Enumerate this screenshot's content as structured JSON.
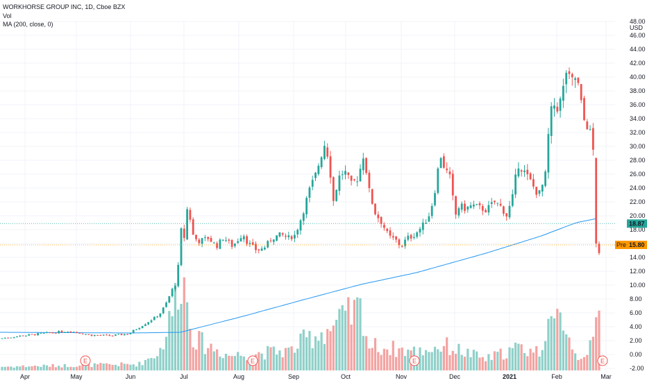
{
  "legend": {
    "symbol_line": "WORKHORSE GROUP INC, 1D, Cboe BZX",
    "vol_label": "Vol",
    "ma_label": "MA (200, close, 0)"
  },
  "colors": {
    "up": "#26a69a",
    "down": "#ef5350",
    "vol_up": "#8fd0c9",
    "vol_down": "#f3a3a1",
    "ma": "#2196f3",
    "last_price": "#26a69a",
    "pre_market": "#ff9800",
    "earnings": "#ef5350"
  },
  "chart_data": {
    "type": "candlestick",
    "currency_label": "USD",
    "y_ticks": [
      "-2.00",
      "0.00",
      "2.00",
      "4.00",
      "6.00",
      "8.00",
      "10.00",
      "12.00",
      "14.00",
      "16.00",
      "18.00",
      "20.00",
      "22.00",
      "24.00",
      "26.00",
      "28.00",
      "30.00",
      "32.00",
      "34.00",
      "36.00",
      "38.00",
      "40.00",
      "42.00",
      "44.00",
      "46.00",
      "48.00"
    ],
    "ylim": [
      -3,
      48
    ],
    "x_labels": [
      "Apr",
      "May",
      "Jun",
      "Jul",
      "Aug",
      "Sep",
      "Oct",
      "Nov",
      "Dec",
      "2021",
      "Feb",
      "Mar"
    ],
    "last_price": {
      "label": "18.87",
      "value": 18.87
    },
    "pre_market": {
      "tag": "Pre",
      "label": "15.80",
      "value": 15.8
    },
    "earnings_marker": "E",
    "earnings_events": [
      "May",
      "Aug",
      "Nov",
      "Mar"
    ],
    "price_anchors": [
      [
        0,
        2.3
      ],
      [
        30,
        2.7
      ],
      [
        60,
        3.0
      ],
      [
        80,
        3.2
      ],
      [
        100,
        3.4
      ],
      [
        110,
        3.2
      ],
      [
        130,
        2.8
      ],
      [
        160,
        2.7
      ],
      [
        185,
        3.0
      ],
      [
        200,
        3.9
      ],
      [
        215,
        4.8
      ],
      [
        230,
        5.8
      ],
      [
        240,
        7.5
      ],
      [
        250,
        9.8
      ],
      [
        255,
        10.3
      ],
      [
        258,
        14.5
      ],
      [
        262,
        19
      ],
      [
        265,
        16.5
      ],
      [
        268,
        20.5
      ],
      [
        272,
        21.5
      ],
      [
        276,
        17.5
      ],
      [
        285,
        16.3
      ],
      [
        300,
        16.8
      ],
      [
        312,
        15.6
      ],
      [
        322,
        16.9
      ],
      [
        335,
        15.6
      ],
      [
        345,
        16.8
      ],
      [
        350,
        17.5
      ],
      [
        356,
        16.2
      ],
      [
        370,
        15.0
      ],
      [
        380,
        15.3
      ],
      [
        392,
        16.8
      ],
      [
        405,
        17.3
      ],
      [
        415,
        16.8
      ],
      [
        425,
        17.2
      ],
      [
        435,
        20.0
      ],
      [
        445,
        23.5
      ],
      [
        455,
        26.0
      ],
      [
        462,
        28.5
      ],
      [
        468,
        30.5
      ],
      [
        474,
        28.0
      ],
      [
        480,
        22.0
      ],
      [
        488,
        25.5
      ],
      [
        496,
        26.5
      ],
      [
        506,
        24.5
      ],
      [
        516,
        25.5
      ],
      [
        524,
        29.0
      ],
      [
        532,
        23.5
      ],
      [
        540,
        20.5
      ],
      [
        550,
        19.0
      ],
      [
        560,
        17.0
      ],
      [
        570,
        16.5
      ],
      [
        578,
        15.5
      ],
      [
        586,
        16.8
      ],
      [
        594,
        17.0
      ],
      [
        604,
        18.0
      ],
      [
        612,
        19.0
      ],
      [
        620,
        20.5
      ],
      [
        628,
        24.5
      ],
      [
        634,
        29.0
      ],
      [
        640,
        27.0
      ],
      [
        648,
        25.5
      ],
      [
        656,
        20.0
      ],
      [
        662,
        21.5
      ],
      [
        670,
        21.0
      ],
      [
        680,
        21.5
      ],
      [
        690,
        21.2
      ],
      [
        700,
        20.8
      ],
      [
        712,
        22.0
      ],
      [
        720,
        21.5
      ],
      [
        730,
        20.0
      ],
      [
        738,
        22.5
      ],
      [
        746,
        27.5
      ],
      [
        754,
        26.5
      ],
      [
        764,
        25.0
      ],
      [
        772,
        23.5
      ],
      [
        778,
        23.2
      ],
      [
        786,
        26.0
      ],
      [
        792,
        34.5
      ],
      [
        798,
        36.0
      ],
      [
        804,
        35.5
      ],
      [
        810,
        37.5
      ],
      [
        816,
        41.0
      ],
      [
        822,
        39.0
      ],
      [
        828,
        40.0
      ],
      [
        834,
        38.5
      ],
      [
        840,
        34.0
      ],
      [
        846,
        33.0
      ],
      [
        852,
        31.5
      ],
      [
        856,
        28.0
      ],
      [
        859,
        14.5
      ],
      [
        862,
        13.0
      ],
      [
        865,
        17.0
      ]
    ],
    "ma_anchors": [
      [
        0,
        3.2
      ],
      [
        190,
        3.1
      ],
      [
        260,
        3.2
      ],
      [
        350,
        5.5
      ],
      [
        430,
        7.7
      ],
      [
        520,
        10.1
      ],
      [
        600,
        11.8
      ],
      [
        700,
        14.6
      ],
      [
        780,
        17.1
      ],
      [
        830,
        19.0
      ],
      [
        860,
        19.6
      ]
    ],
    "volume_anchors": [
      [
        0,
        0.3
      ],
      [
        200,
        0.5
      ],
      [
        230,
        1.5
      ],
      [
        245,
        4.0
      ],
      [
        255,
        6.5
      ],
      [
        260,
        8.5
      ],
      [
        268,
        6.0
      ],
      [
        280,
        2.5
      ],
      [
        330,
        1.2
      ],
      [
        420,
        1.6
      ],
      [
        440,
        2.5
      ],
      [
        480,
        3.5
      ],
      [
        522,
        5.0
      ],
      [
        530,
        2.0
      ],
      [
        600,
        1.5
      ],
      [
        640,
        2.0
      ],
      [
        700,
        0.9
      ],
      [
        745,
        1.8
      ],
      [
        780,
        1.5
      ],
      [
        788,
        4.8
      ],
      [
        792,
        3.0
      ],
      [
        812,
        4.5
      ],
      [
        830,
        1.0
      ],
      [
        855,
        2.0
      ],
      [
        860,
        5.2
      ],
      [
        864,
        3.8
      ]
    ]
  }
}
